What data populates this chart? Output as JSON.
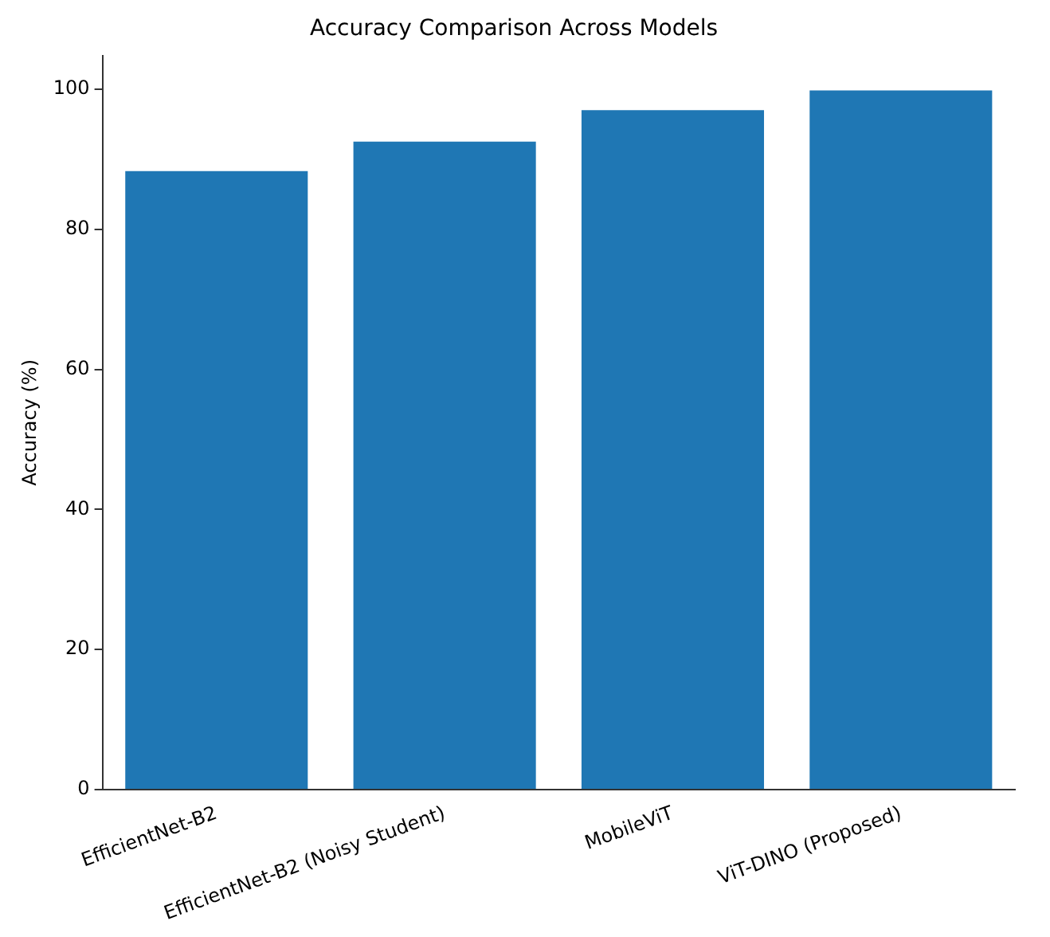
{
  "chart_data": {
    "type": "bar",
    "title": "Accuracy Comparison Across Models",
    "ylabel": "Accuracy (%)",
    "categories": [
      "EfficientNet-B2",
      "EfficientNet-B2 (Noisy Student)",
      "MobileViT",
      "ViT-DINO (Proposed)"
    ],
    "values": [
      88.3,
      92.5,
      97.0,
      99.8
    ],
    "color": "#1f77b4",
    "ylim": [
      0,
      104.8
    ],
    "yticks": [
      0,
      20,
      40,
      60,
      80,
      100
    ],
    "grid": false,
    "legend": false
  }
}
